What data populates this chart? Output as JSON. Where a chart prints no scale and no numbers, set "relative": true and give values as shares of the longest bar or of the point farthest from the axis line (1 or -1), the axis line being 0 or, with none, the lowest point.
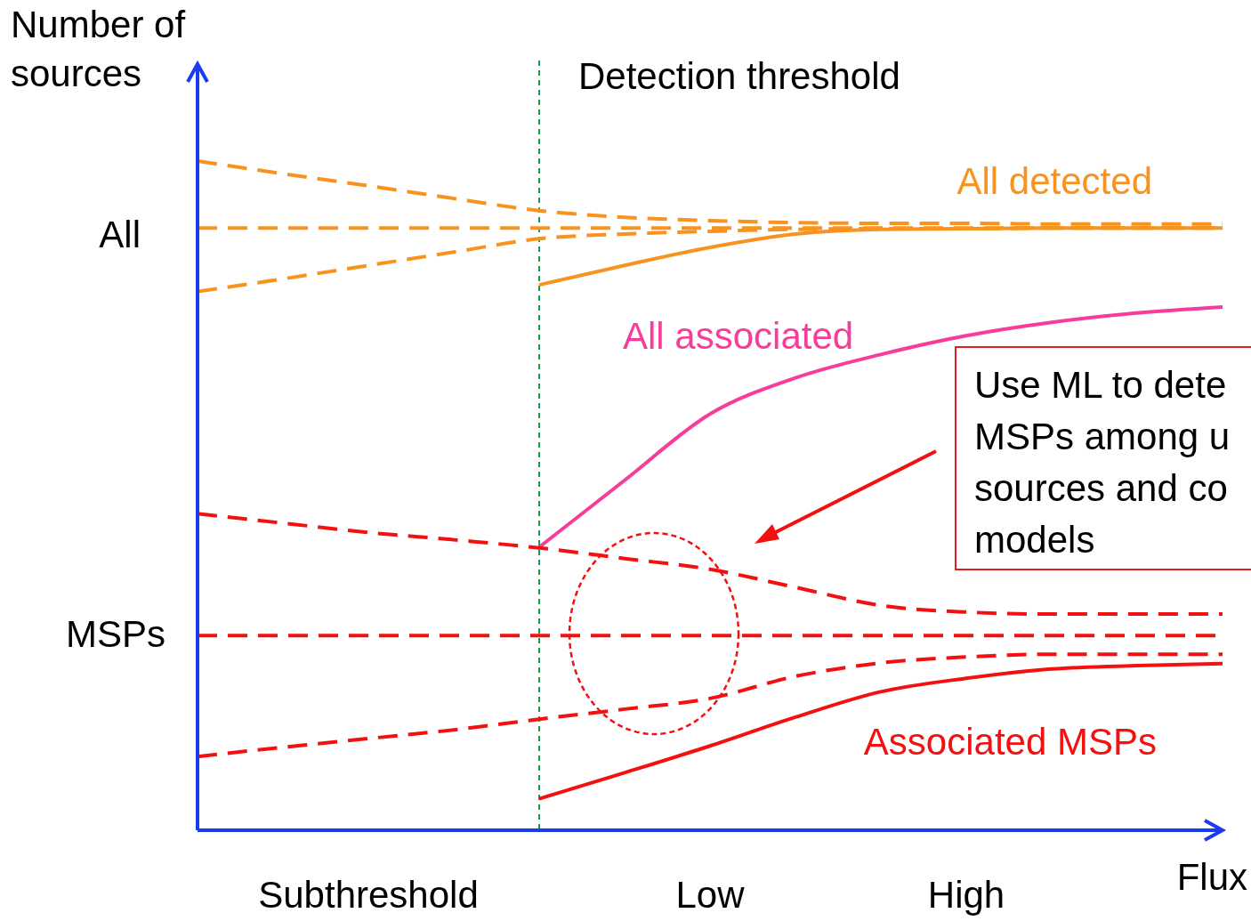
{
  "chart_data": {
    "type": "line",
    "relative": true,
    "xlabel": "Flux",
    "ylabel": "Number of sources",
    "legend": false,
    "categories": [
      null,
      null,
      "Subthreshold",
      null,
      null,
      null,
      "Low",
      null,
      null,
      "High",
      null,
      null,
      null
    ],
    "series": [
      {
        "color": "#f7931e",
        "line_style": "dashed",
        "values": [
          1.0,
          0.981,
          0.963,
          0.944,
          0.926,
          0.916,
          0.911,
          0.908,
          0.907,
          0.907,
          0.906,
          0.906,
          0.906
        ]
      },
      {
        "color": "#f7931e",
        "line_style": "dashed",
        "values": [
          0.9,
          0.9,
          0.9,
          0.9,
          0.9,
          0.9,
          0.9,
          0.9,
          0.9,
          0.9,
          0.9,
          0.9,
          0.9
        ]
      },
      {
        "color": "#f7931e",
        "line_style": "dashed",
        "values": [
          0.805,
          0.824,
          0.844,
          0.864,
          0.884,
          0.891,
          0.895,
          0.898,
          0.899,
          0.899,
          0.9,
          0.9,
          0.9
        ]
      },
      {
        "name": "All detected",
        "color": "#f7931e",
        "line_style": "solid",
        "values": [
          null,
          null,
          null,
          null,
          0.815,
          0.844,
          0.871,
          0.891,
          0.898,
          0.899,
          0.9,
          0.9,
          0.9
        ]
      },
      {
        "name": "All associated",
        "color": "#f83c9a",
        "line_style": "solid",
        "values": [
          null,
          null,
          null,
          null,
          0.423,
          0.523,
          0.622,
          0.676,
          0.711,
          0.739,
          0.759,
          0.773,
          0.782
        ]
      },
      {
        "color": "#f21010",
        "line_style": "dashed",
        "values": [
          0.473,
          0.459,
          0.445,
          0.434,
          0.422,
          0.406,
          0.39,
          0.363,
          0.336,
          0.326,
          0.323,
          0.323,
          0.323
        ]
      },
      {
        "color": "#f21010",
        "line_style": "dashed",
        "values": [
          0.291,
          0.291,
          0.291,
          0.291,
          0.291,
          0.291,
          0.291,
          0.291,
          0.291,
          0.291,
          0.291,
          0.291,
          0.291
        ]
      },
      {
        "color": "#f21010",
        "line_style": "dashed",
        "values": [
          0.11,
          0.124,
          0.137,
          0.15,
          0.166,
          0.181,
          0.197,
          0.23,
          0.25,
          0.259,
          0.263,
          0.263,
          0.263
        ]
      },
      {
        "name": "Associated MSPs",
        "color": "#f21010",
        "line_style": "solid",
        "values": [
          null,
          null,
          null,
          null,
          0.047,
          0.086,
          0.126,
          0.169,
          0.207,
          0.227,
          0.241,
          0.246,
          0.249
        ]
      }
    ],
    "annotations": [
      "Detection threshold",
      "All",
      "MSPs",
      "Use ML to dete\nMSPs among u\nsources and co\nmodels"
    ]
  }
}
